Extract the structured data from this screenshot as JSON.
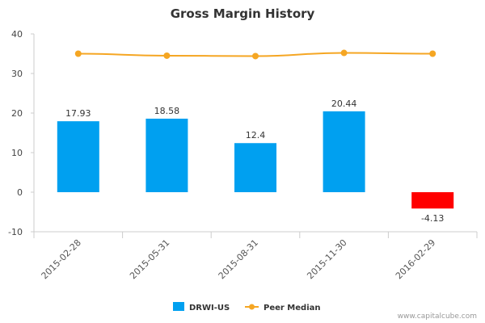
{
  "chart_data": {
    "type": "bar",
    "title": "Gross Margin History",
    "xlabel": "",
    "ylabel": "",
    "ylim": [
      -10,
      40
    ],
    "yticks": [
      -10,
      0,
      10,
      20,
      30,
      40
    ],
    "categories": [
      "2015-02-28",
      "2015-05-31",
      "2015-08-31",
      "2015-11-30",
      "2016-02-29"
    ],
    "series": [
      {
        "name": "DRWI-US",
        "kind": "bar",
        "values": [
          17.93,
          18.58,
          12.4,
          20.44,
          -4.13
        ],
        "labels": [
          "17.93",
          "18.58",
          "12.4",
          "20.44",
          "-4.13"
        ],
        "color": "#00a0f0",
        "negative_color": "#ff0000"
      },
      {
        "name": "Peer Median",
        "kind": "line",
        "values": [
          35.0,
          34.5,
          34.4,
          35.2,
          35.0
        ],
        "color": "#f5a623"
      }
    ],
    "legend_position": "bottom-center",
    "grid": false
  },
  "footer": {
    "source": "www.capitalcube.com"
  }
}
